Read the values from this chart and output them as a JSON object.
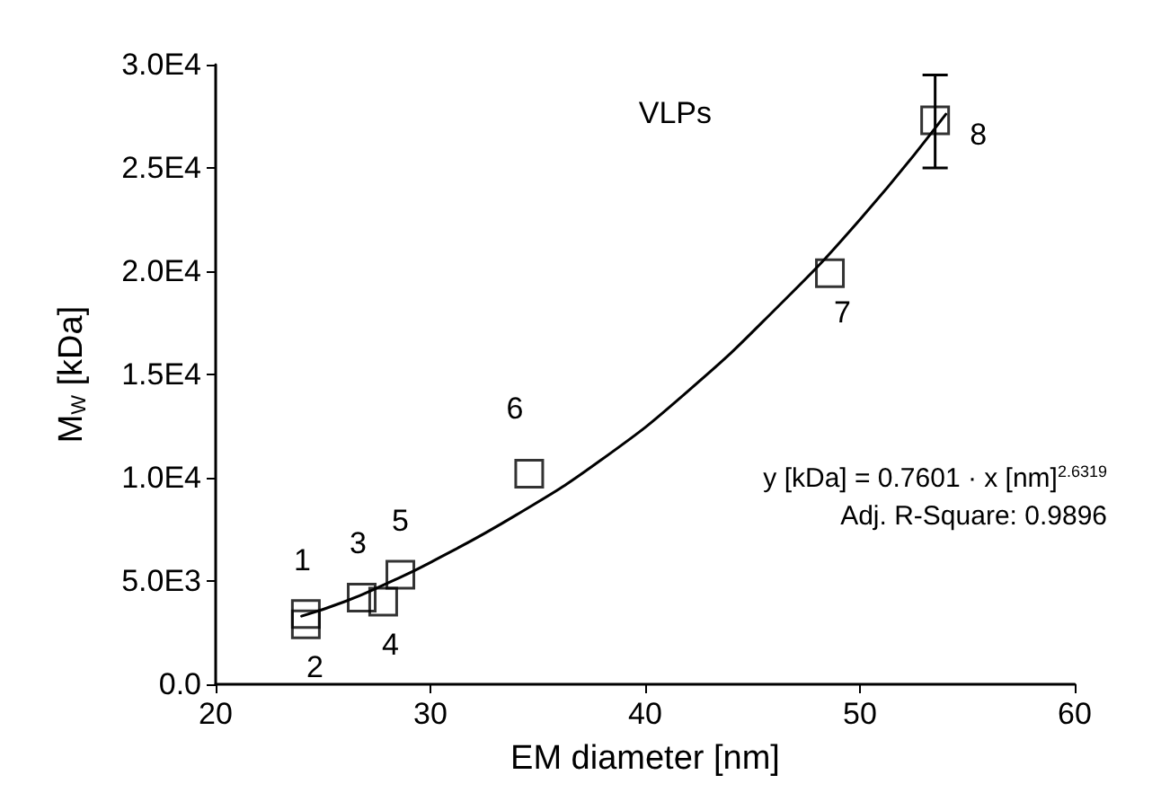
{
  "chart_data": {
    "type": "scatter",
    "xlabel": "EM diameter [nm]",
    "ylabel": "M$_{W}$ [kDa]",
    "xlim": [
      20,
      60
    ],
    "xticks": [
      20,
      30,
      40,
      50,
      60
    ],
    "ylim": [
      0,
      30000
    ],
    "yticks": [
      {
        "value": 0,
        "label": "0.0"
      },
      {
        "value": 5000,
        "label": "5.0E3"
      },
      {
        "value": 10000,
        "label": "1.0E4"
      },
      {
        "value": 15000,
        "label": "1.5E4"
      },
      {
        "value": 20000,
        "label": "2.0E4"
      },
      {
        "value": 25000,
        "label": "2.5E4"
      },
      {
        "value": 30000,
        "label": "3.0E4"
      }
    ],
    "grid": false,
    "legend": false,
    "marker": "square",
    "series": [
      {
        "color": "#000000",
        "x": [
          24.2,
          24.2,
          26.8,
          27.8,
          28.6,
          34.6,
          48.6,
          53.5
        ],
        "values": [
          3400,
          2900,
          4200,
          4000,
          5300,
          10200,
          19900,
          27300
        ],
        "errors": [
          null,
          null,
          null,
          null,
          null,
          null,
          null,
          [
            25000,
            29500
          ]
        ]
      },
      {
        "type": "line",
        "name": "VLPs",
        "color": "#000000",
        "marker": "none",
        "line_style": "solid",
        "x": [
          24,
          26,
          28,
          30,
          34,
          38,
          42,
          46,
          50,
          54
        ],
        "values": [
          3300,
          4000,
          4900,
          5900,
          8200,
          10900,
          14200,
          18100,
          22500,
          27600
        ]
      }
    ],
    "annotations": [
      {
        "text": "1",
        "x": 24.2,
        "y": 3400
      },
      {
        "text": "2",
        "x": 24.2,
        "y": 2900
      },
      {
        "text": "3",
        "x": 26.8,
        "y": 4200
      },
      {
        "text": "4",
        "x": 27.8,
        "y": 4000
      },
      {
        "text": "5",
        "x": 28.6,
        "y": 5300
      },
      {
        "text": "6",
        "x": 34.6,
        "y": 10200
      },
      {
        "text": "7",
        "x": 48.6,
        "y": 19900
      },
      {
        "text": "8",
        "x": 53.5,
        "y": 27300
      },
      "y [kDa] = 0.7601 · x [nm]$^{2.6319}$",
      "Adj. R-Square: 0.9896"
    ]
  }
}
